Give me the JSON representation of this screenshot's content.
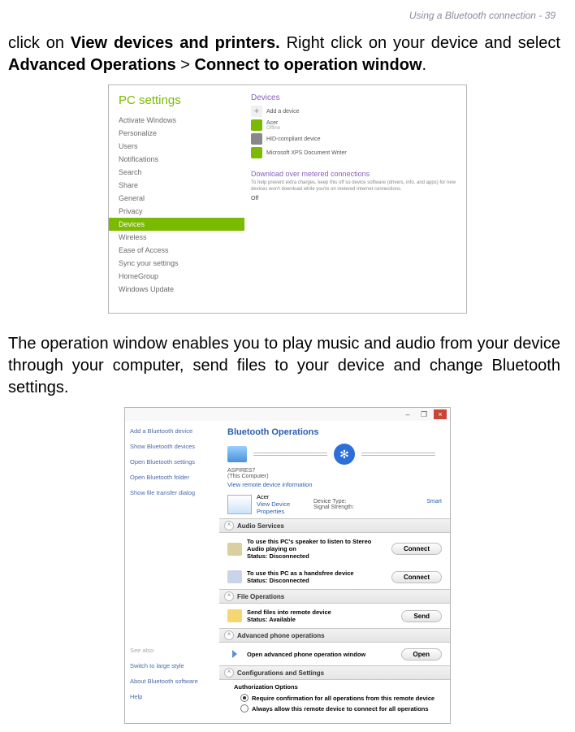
{
  "header": "Using a Bluetooth connection - 39",
  "para1_a": "click on ",
  "para1_b": "View devices and printers.",
  "para1_c": " Right click on your device and select ",
  "para1_d": "Advanced Operations",
  "para1_e": " > ",
  "para1_f": "Connect to operation window",
  "para1_g": ".",
  "para2": "The operation window enables you to play music and audio from your device through your computer, send files to your device and change Bluetooth settings.",
  "pcs": {
    "title": "PC settings",
    "items": [
      "Activate Windows",
      "Personalize",
      "Users",
      "Notifications",
      "Search",
      "Share",
      "General",
      "Privacy",
      "Devices",
      "Wireless",
      "Ease of Access",
      "Sync your settings",
      "HomeGroup",
      "Windows Update"
    ],
    "selectedIndex": 8,
    "devicesLabel": "Devices",
    "add": "Add a device",
    "d1": "Acer",
    "d1s": "Offline",
    "d2": "HID-compliant device",
    "d3": "Microsoft XPS Document Writer",
    "sec2": "Download over metered connections",
    "sec2txt": "To help prevent extra charges, keep this off so device software (drivers, info, and apps) for new devices won't download while you're on metered Internet connections.",
    "off": "Off"
  },
  "bt": {
    "left": [
      "Add a Bluetooth device",
      "Show Bluetooth devices",
      "Open Bluetooth settings",
      "Open Bluetooth folder",
      "Show file transfer dialog"
    ],
    "see": "See also",
    "left2": [
      "Switch to large style",
      "About Bluetooth software",
      "Help"
    ],
    "title": "Bluetooth Operations",
    "compName": "ASPIRES7",
    "compSub": "(This Computer)",
    "link1": "View remote device information",
    "remoteName": "Acer",
    "props": "View Device Properties",
    "k1": "Device Type:",
    "v1": "Smart",
    "k2": "Signal Strength:",
    "sec_audio": "Audio Services",
    "audio1": "To use this PC's speaker to listen to Stereo Audio playing on",
    "status_disc": "Status:   Disconnected",
    "connect": "Connect",
    "audio2": "To use this PC as a handsfree device",
    "sec_file": "File Operations",
    "file1": "Send files into remote device",
    "status_avail": "Status:   Available",
    "send": "Send",
    "sec_adv": "Advanced phone operations",
    "adv1": "Open advanced phone operation window",
    "open": "Open",
    "sec_conf": "Configurations and Settings",
    "auth_t": "Authorization Options",
    "auth_r1": "Require confirmation for all operations from this remote device",
    "auth_r2": "Always allow this remote device to connect for all operations"
  }
}
